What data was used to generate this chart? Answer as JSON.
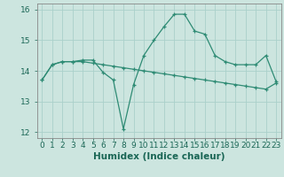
{
  "x": [
    0,
    1,
    2,
    3,
    4,
    5,
    6,
    7,
    8,
    9,
    10,
    11,
    12,
    13,
    14,
    15,
    16,
    17,
    18,
    19,
    20,
    21,
    22,
    23
  ],
  "line1": [
    13.7,
    14.2,
    14.3,
    14.3,
    14.3,
    14.25,
    14.2,
    14.15,
    14.1,
    14.05,
    14.0,
    13.95,
    13.9,
    13.85,
    13.8,
    13.75,
    13.7,
    13.65,
    13.6,
    13.55,
    13.5,
    13.45,
    13.4,
    13.6
  ],
  "line2": [
    13.7,
    14.2,
    14.3,
    14.3,
    14.35,
    14.35,
    13.95,
    13.7,
    12.1,
    13.55,
    14.5,
    15.0,
    15.45,
    15.85,
    15.85,
    15.3,
    15.2,
    14.5,
    14.3,
    14.2,
    14.2,
    14.2,
    14.5,
    13.65
  ],
  "line_color": "#2e8b74",
  "bg_color": "#cce5df",
  "grid_color": "#aad0ca",
  "xlabel": "Humidex (Indice chaleur)",
  "ylim": [
    11.8,
    16.2
  ],
  "xlim": [
    -0.5,
    23.5
  ],
  "yticks": [
    12,
    13,
    14,
    15,
    16
  ],
  "xticks": [
    0,
    1,
    2,
    3,
    4,
    5,
    6,
    7,
    8,
    9,
    10,
    11,
    12,
    13,
    14,
    15,
    16,
    17,
    18,
    19,
    20,
    21,
    22,
    23
  ],
  "tick_fontsize": 6.5,
  "xlabel_fontsize": 7.5,
  "title_color": "#1a6655"
}
